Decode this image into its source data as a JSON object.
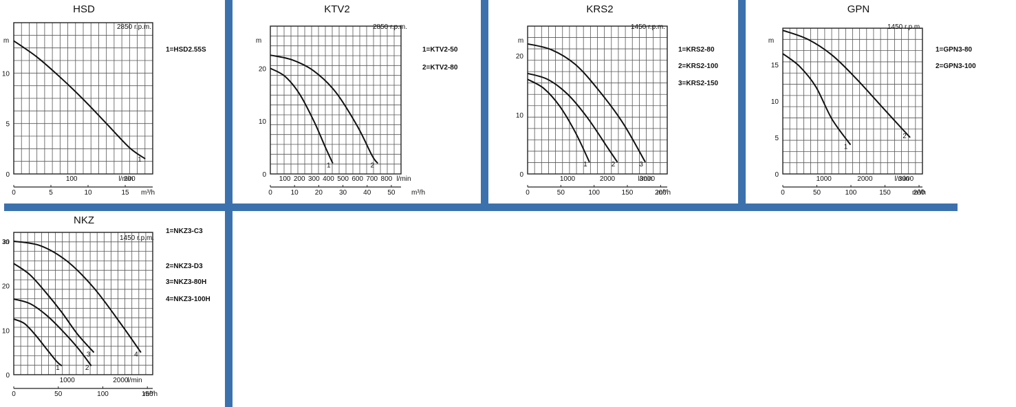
{
  "colors": {
    "separator": "#3b72ad",
    "grid": "#555555",
    "curve": "#111111"
  },
  "chart_data": [
    {
      "type": "line",
      "title": "HSD",
      "rpm": "2850 r.p.m.",
      "ylabel": "m",
      "ylim": [
        0,
        15
      ],
      "yticks": [
        0,
        5,
        10
      ],
      "xlim": [
        0,
        240
      ],
      "xticks_top": [
        100,
        200
      ],
      "xunit_top": "l/min",
      "xlim2": [
        0,
        18.7
      ],
      "xticks_bottom": [
        0,
        5,
        10,
        15
      ],
      "xunit_bottom": "m³/h",
      "grid": true,
      "series": [
        {
          "name": "1",
          "x": [
            0,
            40,
            80,
            120,
            160,
            200,
            227
          ],
          "y": [
            13.2,
            11.6,
            9.6,
            7.4,
            5.0,
            2.6,
            1.5
          ]
        }
      ],
      "legend": [
        "1=HSD2.55S"
      ]
    },
    {
      "type": "line",
      "title": "KTV2",
      "rpm": "2850 r.p.m.",
      "ylabel": "m",
      "ylim": [
        0,
        28
      ],
      "yticks": [
        0,
        10,
        20
      ],
      "xlim": [
        0,
        900
      ],
      "xticks_top": [
        100,
        200,
        300,
        400,
        500,
        600,
        700,
        800
      ],
      "xunit_top": "l/min",
      "xlim2": [
        0,
        54
      ],
      "xticks_bottom": [
        0,
        10,
        20,
        30,
        40,
        50
      ],
      "xunit_bottom": "m³/h",
      "grid": true,
      "series": [
        {
          "name": "1",
          "x": [
            0,
            100,
            200,
            300,
            380,
            430
          ],
          "y": [
            20.0,
            18.5,
            15.2,
            10.0,
            5.0,
            2.0
          ]
        },
        {
          "name": "2",
          "x": [
            0,
            150,
            300,
            450,
            600,
            700,
            740
          ],
          "y": [
            22.5,
            21.6,
            19.5,
            15.5,
            9.0,
            3.5,
            2.0
          ]
        }
      ],
      "legend": [
        "1=KTV2-50",
        "2=KTV2-80"
      ]
    },
    {
      "type": "line",
      "title": "KRS2",
      "rpm": "1450 r.p.m.",
      "ylabel": "m",
      "ylim": [
        0,
        25
      ],
      "yticks": [
        0,
        10,
        20
      ],
      "xlim": [
        0,
        3500
      ],
      "xticks_top": [
        1000,
        2000,
        3000
      ],
      "xunit_top": "l/min",
      "xlim2": [
        0,
        210
      ],
      "xticks_bottom": [
        0,
        50,
        100,
        150,
        200
      ],
      "xunit_bottom": "m³/h",
      "grid": true,
      "series": [
        {
          "name": "1",
          "x": [
            0,
            400,
            800,
            1200,
            1550
          ],
          "y": [
            16.0,
            14.5,
            11.5,
            7.0,
            2.0
          ]
        },
        {
          "name": "2",
          "x": [
            0,
            500,
            1000,
            1500,
            2000,
            2250
          ],
          "y": [
            17.0,
            16.0,
            13.5,
            9.5,
            4.5,
            2.0
          ]
        },
        {
          "name": "3",
          "x": [
            0,
            600,
            1200,
            1800,
            2400,
            2950
          ],
          "y": [
            22.0,
            21.0,
            18.5,
            14.0,
            8.5,
            2.0
          ]
        }
      ],
      "legend": [
        "1=KRS2-80",
        "2=KRS2-100",
        "3=KRS2-150"
      ]
    },
    {
      "type": "line",
      "title": "GPN",
      "rpm": "1450 r.p.m.",
      "ylabel": "m",
      "ylim": [
        0,
        20
      ],
      "yticks": [
        0,
        5,
        10,
        15
      ],
      "xlim": [
        0,
        3400
      ],
      "xticks_top": [
        1000,
        2000,
        3000
      ],
      "xunit_top": "l/min",
      "xlim2": [
        0,
        205
      ],
      "xticks_bottom": [
        0,
        50,
        100,
        150,
        200
      ],
      "xunit_bottom": "m³/h",
      "grid": true,
      "series": [
        {
          "name": "1",
          "x": [
            0,
            400,
            800,
            1200,
            1650
          ],
          "y": [
            16.5,
            14.8,
            12.0,
            7.5,
            4.0
          ]
        },
        {
          "name": "2",
          "x": [
            0,
            600,
            1200,
            1800,
            2400,
            3100
          ],
          "y": [
            19.7,
            18.5,
            16.3,
            13.0,
            9.3,
            5.0
          ]
        }
      ],
      "legend": [
        "1=GPN3-80",
        "2=GPN3-100"
      ]
    },
    {
      "type": "line",
      "title": "NKZ",
      "rpm": "1450 r.p.m.",
      "ylabel": "m",
      "ylim": [
        0,
        32
      ],
      "yticks": [
        0,
        10,
        20,
        30
      ],
      "xlim": [
        0,
        2600
      ],
      "xticks_top": [
        1000,
        2000
      ],
      "xunit_top": "l/min",
      "xlim2": [
        0,
        156
      ],
      "xticks_bottom": [
        0,
        50,
        100,
        150
      ],
      "xunit_bottom": "m³/h",
      "grid": true,
      "series": [
        {
          "name": "1",
          "x": [
            0,
            200,
            400,
            600,
            800,
            900
          ],
          "y": [
            12.5,
            11.5,
            9.0,
            6.0,
            3.0,
            2.0
          ]
        },
        {
          "name": "2",
          "x": [
            0,
            300,
            600,
            900,
            1200,
            1450
          ],
          "y": [
            17.0,
            16.0,
            13.5,
            10.0,
            6.0,
            2.0
          ]
        },
        {
          "name": "3",
          "x": [
            0,
            300,
            600,
            900,
            1200,
            1500
          ],
          "y": [
            25.0,
            22.5,
            18.5,
            14.0,
            9.0,
            5.0
          ]
        },
        {
          "name": "4",
          "x": [
            0,
            500,
            1000,
            1500,
            2000,
            2380
          ],
          "y": [
            30.0,
            29.0,
            25.5,
            19.5,
            11.5,
            5.0
          ]
        }
      ],
      "legend": [
        "1=NKZ3-C3",
        "2=NKZ3-D3",
        "3=NKZ3-80H",
        "4=NKZ3-100H"
      ]
    }
  ]
}
